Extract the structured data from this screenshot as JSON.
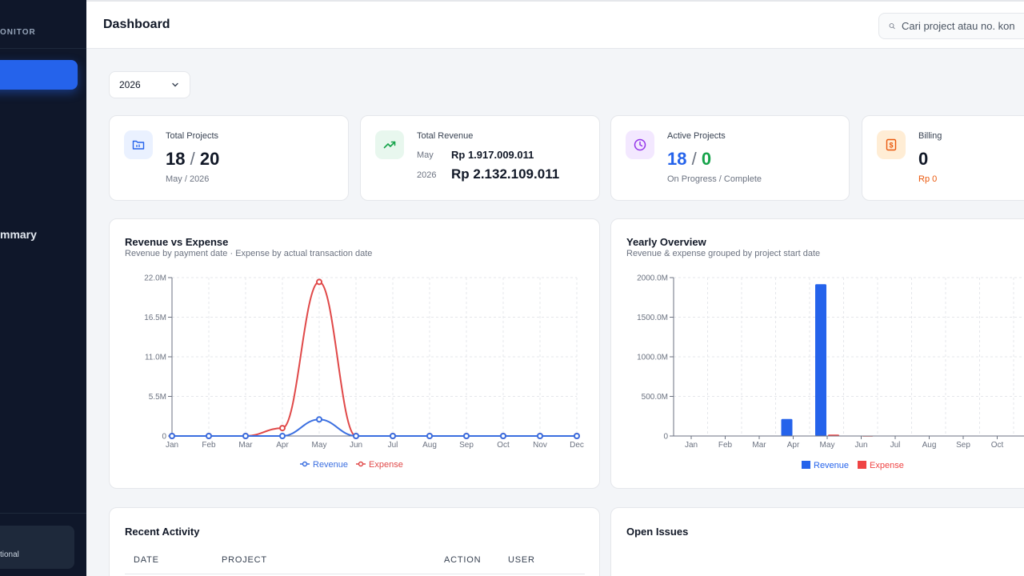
{
  "sidebar": {
    "brand": "ONITOR",
    "summary_label": "mmary",
    "user_role": "tional"
  },
  "header": {
    "title": "Dashboard",
    "search_placeholder": "Cari project atau no. kon"
  },
  "filter": {
    "year": "2026"
  },
  "stats": {
    "total_projects": {
      "label": "Total Projects",
      "value": "18",
      "total": "20",
      "sub": "May / 2026",
      "icon": "folder-chart-icon",
      "color": "#2563eb"
    },
    "total_revenue": {
      "label": "Total Revenue",
      "month_label": "May",
      "month_value": "Rp 1.917.009.011",
      "year_label": "2026",
      "year_value": "Rp 2.132.109.011",
      "icon": "trending-up-icon",
      "color": "#16a34a"
    },
    "active_projects": {
      "label": "Active Projects",
      "progress": "18",
      "complete": "0",
      "sub": "On Progress / Complete",
      "icon": "clock-icon",
      "progress_color": "#2563eb",
      "complete_color": "#16a34a"
    },
    "billing": {
      "label": "Billing",
      "value": "0",
      "sub": "Rp 0",
      "icon": "dollar-doc-icon",
      "color": "#ea580c"
    }
  },
  "revenue_chart": {
    "title": "Revenue vs Expense",
    "subtitle": "Revenue by payment date · Expense by actual transaction date"
  },
  "yearly_chart": {
    "title": "Yearly Overview",
    "subtitle": "Revenue & expense grouped by project start date"
  },
  "chart_data": [
    {
      "type": "line",
      "title": "Revenue vs Expense",
      "categories": [
        "Jan",
        "Feb",
        "Mar",
        "Apr",
        "May",
        "Jun",
        "Jul",
        "Aug",
        "Sep",
        "Oct",
        "Nov",
        "Dec"
      ],
      "y_ticks": [
        "0",
        "5.5M",
        "11.0M",
        "16.5M",
        "22.0M"
      ],
      "ylim": [
        0,
        22000000
      ],
      "grid": true,
      "legend": "bottom",
      "series": [
        {
          "name": "Revenue",
          "color": "#3b6fe0",
          "values": [
            0,
            0,
            0,
            0,
            2300000,
            0,
            0,
            0,
            0,
            0,
            0,
            0
          ]
        },
        {
          "name": "Expense",
          "color": "#e04848",
          "values": [
            0,
            0,
            0,
            1100000,
            21400000,
            0,
            0,
            0,
            0,
            0,
            0,
            0
          ]
        }
      ]
    },
    {
      "type": "bar",
      "title": "Yearly Overview",
      "categories": [
        "Jan",
        "Feb",
        "Mar",
        "Apr",
        "May",
        "Jun",
        "Jul",
        "Aug",
        "Sep",
        "Oct"
      ],
      "y_ticks": [
        "0",
        "500.0M",
        "1000.0M",
        "1500.0M",
        "2000.0M"
      ],
      "ylim": [
        0,
        2000000000
      ],
      "grid": true,
      "legend": "bottom",
      "series": [
        {
          "name": "Revenue",
          "color": "#2563eb",
          "values": [
            0,
            0,
            0,
            215000000,
            1917000000,
            0,
            0,
            0,
            0,
            0
          ]
        },
        {
          "name": "Expense",
          "color": "#ef4444",
          "values": [
            0,
            0,
            0,
            0,
            18000000,
            3000000,
            0,
            0,
            0,
            0
          ]
        }
      ]
    }
  ],
  "recent_activity": {
    "title": "Recent Activity",
    "columns": [
      "DATE",
      "PROJECT",
      "ACTION",
      "USER"
    ]
  },
  "open_issues": {
    "title": "Open Issues"
  }
}
